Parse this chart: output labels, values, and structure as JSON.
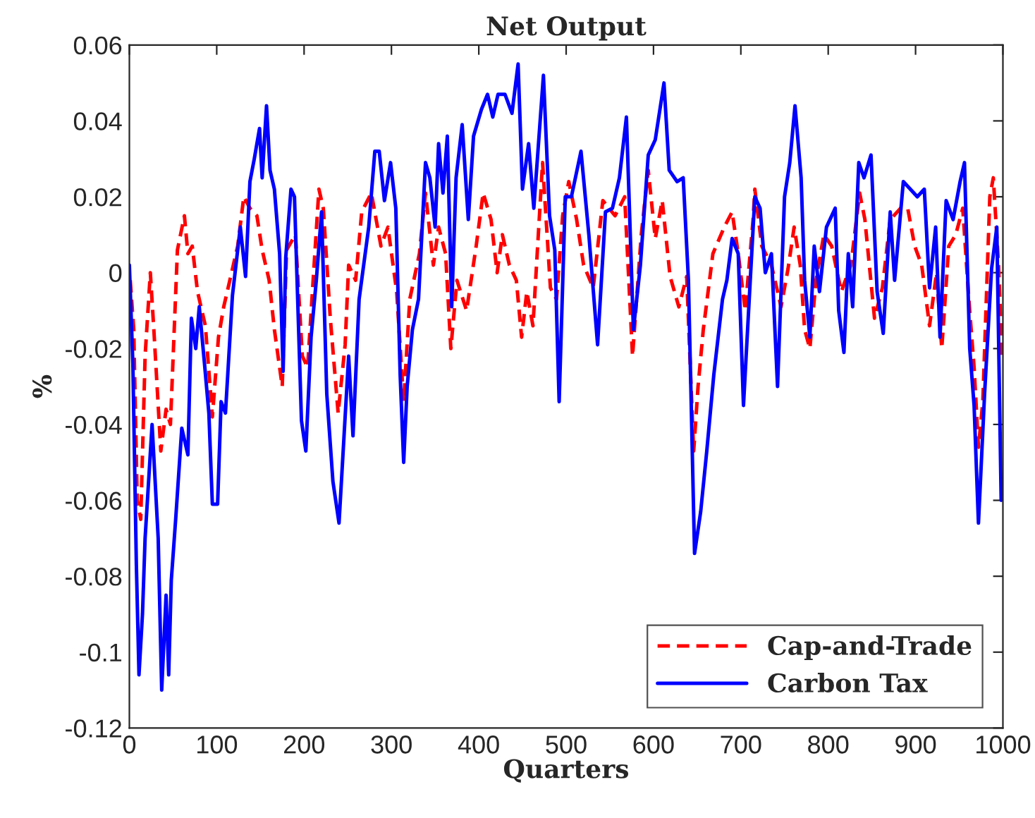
{
  "chart_data": {
    "type": "line",
    "title": "Net Output",
    "xlabel": "Quarters",
    "ylabel": "%",
    "xlim": [
      0,
      1000
    ],
    "xticks": [
      0,
      100,
      200,
      300,
      400,
      500,
      600,
      700,
      800,
      900,
      1000
    ],
    "ylim": [
      -0.12,
      0.06
    ],
    "yticks": [
      -0.12,
      -0.1,
      -0.08,
      -0.06,
      -0.04,
      -0.02,
      0,
      0.02,
      0.04,
      0.06
    ],
    "grid": false,
    "legend": "bottom right",
    "series": [
      {
        "name": "Cap-and-Trade",
        "color": "#ff0000",
        "line_style": "dashed",
        "x": [
          1,
          5,
          9,
          13,
          18,
          24,
          28,
          36,
          42,
          47,
          55,
          63,
          67,
          72,
          78,
          87,
          95,
          102,
          108,
          113,
          124,
          131,
          138,
          146,
          152,
          160,
          166,
          175,
          180,
          190,
          198,
          204,
          217,
          222,
          230,
          239,
          247,
          251,
          259,
          266,
          277,
          288,
          296,
          306,
          314,
          321,
          332,
          339,
          348,
          354,
          362,
          368,
          375,
          386,
          397,
          405,
          414,
          421,
          427,
          435,
          443,
          449,
          455,
          462,
          473,
          482,
          489,
          496,
          503,
          512,
          520,
          531,
          542,
          556,
          567,
          576,
          586,
          594,
          602,
          610,
          619,
          629,
          638,
          646,
          651,
          657,
          668,
          681,
          690,
          697,
          705,
          714,
          716,
          724,
          735,
          746,
          754,
          761,
          768,
          773,
          779,
          786,
          795,
          804,
          815,
          826,
          836,
          842,
          853,
          862,
          871,
          883,
          891,
          899,
          907,
          916,
          924,
          930,
          938,
          946,
          954,
          961,
          967,
          972,
          977,
          985,
          989,
          995,
          999
        ],
        "values": [
          -0.002,
          -0.015,
          -0.06,
          -0.065,
          -0.022,
          0,
          -0.015,
          -0.047,
          -0.036,
          -0.04,
          0.006,
          0.015,
          0.005,
          0.007,
          -0.005,
          -0.014,
          -0.038,
          -0.017,
          -0.009,
          -0.004,
          0.007,
          0.02,
          0.017,
          0.015,
          0.006,
          -0.002,
          -0.015,
          -0.03,
          0.006,
          0.01,
          -0.022,
          -0.025,
          0.022,
          0.017,
          -0.012,
          -0.037,
          -0.019,
          0.002,
          -0.002,
          0.016,
          0.021,
          0.007,
          0.012,
          -0.005,
          -0.034,
          -0.007,
          0.005,
          0.021,
          0.002,
          0.012,
          0.005,
          -0.02,
          -0.002,
          -0.01,
          0.007,
          0.021,
          0.014,
          0,
          0.01,
          0.002,
          -0.002,
          -0.017,
          -0.005,
          -0.014,
          0.029,
          -0.004,
          -0.007,
          0.015,
          0.024,
          0.014,
          0.002,
          -0.004,
          0.019,
          0.015,
          0.02,
          -0.022,
          0.01,
          0.027,
          0.009,
          0.019,
          -0.001,
          -0.009,
          -0.001,
          -0.047,
          -0.03,
          -0.015,
          0.005,
          0.012,
          0.016,
          0.005,
          -0.01,
          0.014,
          0.022,
          0.007,
          0.002,
          -0.009,
          0.001,
          0.012,
          0.002,
          -0.015,
          -0.02,
          -0.002,
          0.01,
          0.007,
          -0.005,
          0.002,
          0.021,
          0.014,
          -0.012,
          -0.004,
          0.014,
          0.017,
          0.017,
          0.007,
          0.002,
          -0.014,
          0,
          -0.02,
          0.007,
          0.01,
          0.017,
          -0.007,
          -0.025,
          -0.046,
          -0.034,
          0.02,
          0.025,
          0.002,
          -0.022
        ]
      },
      {
        "name": "Carbon Tax",
        "color": "#0000ff",
        "line_style": "solid",
        "x": [
          0,
          4,
          8,
          11,
          15,
          18,
          26,
          33,
          37,
          42,
          45,
          48,
          53,
          60,
          67,
          71,
          76,
          80,
          86,
          91,
          95,
          101,
          105,
          110,
          118,
          127,
          133,
          138,
          143,
          149,
          152,
          157,
          161,
          166,
          172,
          176,
          179,
          185,
          189,
          197,
          202,
          208,
          214,
          220,
          226,
          233,
          240,
          246,
          251,
          256,
          263,
          274,
          281,
          286,
          292,
          299,
          305,
          310,
          314,
          318,
          324,
          331,
          339,
          344,
          350,
          354,
          359,
          364,
          369,
          374,
          381,
          388,
          394,
          403,
          410,
          416,
          422,
          430,
          438,
          445,
          450,
          457,
          463,
          474,
          481,
          487,
          492,
          499,
          506,
          517,
          526,
          536,
          545,
          553,
          561,
          569,
          577,
          585,
          594,
          602,
          612,
          618,
          627,
          634,
          640,
          647,
          654,
          661,
          669,
          679,
          684,
          690,
          697,
          703,
          711,
          716,
          722,
          728,
          735,
          742,
          750,
          756,
          762,
          769,
          773,
          779,
          784,
          790,
          798,
          808,
          812,
          818,
          823,
          828,
          835,
          841,
          849,
          856,
          863,
          871,
          876,
          886,
          894,
          902,
          910,
          916,
          923,
          928,
          935,
          943,
          951,
          956,
          962,
          967,
          972,
          979,
          987,
          993,
          998
        ],
        "values": [
          0.002,
          -0.024,
          -0.077,
          -0.106,
          -0.09,
          -0.07,
          -0.04,
          -0.07,
          -0.11,
          -0.085,
          -0.106,
          -0.081,
          -0.065,
          -0.041,
          -0.048,
          -0.012,
          -0.02,
          -0.009,
          -0.024,
          -0.037,
          -0.061,
          -0.061,
          -0.034,
          -0.037,
          -0.006,
          0.012,
          -0.001,
          0.024,
          0.03,
          0.038,
          0.025,
          0.044,
          0.027,
          0.022,
          0.005,
          -0.026,
          0.004,
          0.022,
          0.02,
          -0.039,
          -0.047,
          -0.017,
          -0.002,
          0.016,
          -0.032,
          -0.055,
          -0.066,
          -0.042,
          -0.022,
          -0.043,
          -0.007,
          0.012,
          0.032,
          0.032,
          0.019,
          0.029,
          0.017,
          -0.027,
          -0.05,
          -0.03,
          -0.015,
          -0.007,
          0.029,
          0.025,
          0.012,
          0.034,
          0.021,
          0.036,
          -0.009,
          0.025,
          0.039,
          0.014,
          0.036,
          0.043,
          0.047,
          0.041,
          0.047,
          0.047,
          0.042,
          0.055,
          0.022,
          0.034,
          0.017,
          0.052,
          0.015,
          0.006,
          -0.034,
          0.02,
          0.02,
          0.032,
          0.01,
          -0.019,
          0.016,
          0.017,
          0.025,
          0.041,
          -0.015,
          0.002,
          0.031,
          0.035,
          0.05,
          0.027,
          0.024,
          0.025,
          -0.002,
          -0.074,
          -0.063,
          -0.047,
          -0.027,
          -0.007,
          -0.002,
          0.009,
          0.005,
          -0.035,
          -0.001,
          0.02,
          0.017,
          0,
          0.005,
          -0.03,
          0.02,
          0.029,
          0.044,
          0.025,
          -0.002,
          -0.017,
          0.007,
          -0.005,
          0.012,
          0.017,
          -0.01,
          -0.021,
          0.005,
          -0.009,
          0.029,
          0.025,
          0.031,
          -0.005,
          -0.016,
          0.016,
          -0.002,
          0.024,
          0.022,
          0.02,
          0.022,
          -0.004,
          0.012,
          -0.017,
          0.019,
          0.014,
          0.024,
          0.029,
          -0.02,
          -0.035,
          -0.066,
          -0.032,
          0.001,
          0.012,
          -0.06
        ]
      }
    ]
  }
}
